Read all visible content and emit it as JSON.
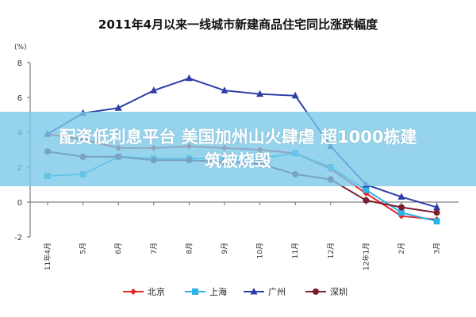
{
  "overlay": {
    "line1": "配资低利息平台 美国加州山火肆虐 超1000栋建",
    "line2": "筑被烧毁"
  },
  "chart_data": {
    "type": "line",
    "title": "2011年4月以来一线城市新建商品住宅同比涨跌幅度",
    "ylabel_unit": "(%)",
    "ylim": [
      -2,
      8
    ],
    "yticks": [
      "8",
      "6",
      "4",
      "2",
      "0",
      "-2"
    ],
    "categories": [
      "11年4月",
      "5月",
      "6月",
      "7月",
      "8月",
      "9月",
      "10月",
      "11月",
      "12月",
      "12年1月",
      "2月",
      "3月"
    ],
    "legend_position": "bottom",
    "grid": false,
    "series": [
      {
        "name": "北京",
        "color": "#E8262A",
        "marker": "diamond",
        "values": [
          3.9,
          3.6,
          3.1,
          3.1,
          3.2,
          3.1,
          3.0,
          2.8,
          1.9,
          0.5,
          -0.8,
          -1.0
        ]
      },
      {
        "name": "上海",
        "color": "#2BB3E8",
        "marker": "square",
        "values": [
          1.5,
          1.6,
          2.6,
          2.5,
          2.5,
          2.5,
          2.5,
          2.8,
          2.0,
          0.7,
          -0.6,
          -1.1
        ]
      },
      {
        "name": "广州",
        "color": "#2E3EA8",
        "marker": "triangle",
        "values": [
          3.9,
          5.1,
          5.4,
          6.4,
          7.1,
          6.4,
          6.2,
          6.1,
          3.2,
          1.0,
          0.3,
          -0.3
        ]
      },
      {
        "name": "深圳",
        "color": "#7A1E2E",
        "marker": "circle",
        "values": [
          2.9,
          2.6,
          2.6,
          2.4,
          2.4,
          2.3,
          2.2,
          1.6,
          1.3,
          0.1,
          -0.3,
          -0.6
        ]
      }
    ]
  }
}
